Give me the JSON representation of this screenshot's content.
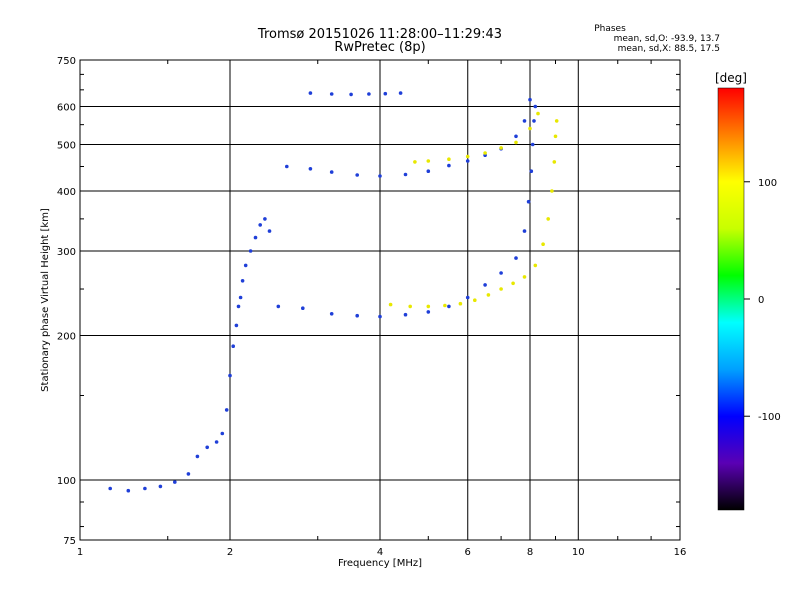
{
  "header": {
    "title_line1": "Tromsø 20151026 11:28:00–11:29:43",
    "title_line2": "RwPretec (8p)",
    "stats_title": "Phases",
    "stats_o": "mean, sd,O: -93.9, 13.7",
    "stats_x": "mean, sd,X: 88.5, 17.5"
  },
  "chart_data": {
    "type": "scatter",
    "title": "Tromsø 20151026 11:28:00–11:29:43",
    "subtitle": "RwPretec (8p)",
    "xlabel": "Frequency [MHz]",
    "ylabel": "Stationary phase Virtual Height [km]",
    "xscale": "log",
    "yscale": "log",
    "xlim": [
      1,
      16
    ],
    "ylim": [
      75,
      750
    ],
    "xticks": [
      1,
      2,
      4,
      6,
      8,
      10,
      16
    ],
    "yticks": [
      75,
      100,
      200,
      300,
      400,
      500,
      600,
      750
    ],
    "grid": true,
    "colorbar": {
      "label": "[deg]",
      "range": [
        -180,
        180
      ],
      "ticks": [
        -100,
        0,
        100
      ],
      "colors": [
        "#000000",
        "#5a00b4",
        "#0000ff",
        "#00a0ff",
        "#00ffff",
        "#00ff00",
        "#c8ff00",
        "#ffff00",
        "#ff8000",
        "#ff0000"
      ]
    },
    "series": [
      {
        "name": "O",
        "color": "#1f3fd8",
        "points": [
          [
            1.15,
            96
          ],
          [
            1.25,
            95
          ],
          [
            1.35,
            96
          ],
          [
            1.45,
            97
          ],
          [
            1.55,
            99
          ],
          [
            1.65,
            103
          ],
          [
            1.72,
            112
          ],
          [
            1.8,
            117
          ],
          [
            1.88,
            120
          ],
          [
            1.93,
            125
          ],
          [
            1.97,
            140
          ],
          [
            2.0,
            165
          ],
          [
            2.03,
            190
          ],
          [
            2.06,
            210
          ],
          [
            2.08,
            230
          ],
          [
            2.1,
            240
          ],
          [
            2.12,
            260
          ],
          [
            2.15,
            280
          ],
          [
            2.2,
            300
          ],
          [
            2.25,
            320
          ],
          [
            2.3,
            340
          ],
          [
            2.35,
            350
          ],
          [
            2.4,
            330
          ],
          [
            2.5,
            230
          ],
          [
            2.8,
            228
          ],
          [
            3.2,
            222
          ],
          [
            3.6,
            220
          ],
          [
            4.0,
            219
          ],
          [
            4.5,
            221
          ],
          [
            5.0,
            224
          ],
          [
            5.5,
            230
          ],
          [
            6.0,
            240
          ],
          [
            6.5,
            255
          ],
          [
            7.0,
            270
          ],
          [
            7.5,
            290
          ],
          [
            7.8,
            330
          ],
          [
            7.95,
            380
          ],
          [
            8.05,
            440
          ],
          [
            8.1,
            500
          ],
          [
            8.15,
            560
          ],
          [
            8.2,
            600
          ],
          [
            2.6,
            450
          ],
          [
            2.9,
            445
          ],
          [
            3.2,
            438
          ],
          [
            3.6,
            432
          ],
          [
            4.0,
            430
          ],
          [
            4.5,
            433
          ],
          [
            5.0,
            440
          ],
          [
            5.5,
            452
          ],
          [
            6.0,
            462
          ],
          [
            6.5,
            475
          ],
          [
            7.0,
            490
          ],
          [
            7.5,
            520
          ],
          [
            7.8,
            560
          ],
          [
            8.0,
            620
          ],
          [
            2.9,
            640
          ],
          [
            3.2,
            637
          ],
          [
            3.5,
            636
          ],
          [
            3.8,
            637
          ],
          [
            4.1,
            638
          ],
          [
            4.4,
            640
          ]
        ]
      },
      {
        "name": "X",
        "color": "#e8e800",
        "points": [
          [
            4.2,
            232
          ],
          [
            4.6,
            230
          ],
          [
            5.0,
            230
          ],
          [
            5.4,
            231
          ],
          [
            5.8,
            233
          ],
          [
            6.2,
            237
          ],
          [
            6.6,
            243
          ],
          [
            7.0,
            250
          ],
          [
            7.4,
            257
          ],
          [
            7.8,
            265
          ],
          [
            8.2,
            280
          ],
          [
            8.5,
            310
          ],
          [
            8.7,
            350
          ],
          [
            8.85,
            400
          ],
          [
            8.95,
            460
          ],
          [
            9.0,
            520
          ],
          [
            9.05,
            560
          ],
          [
            4.7,
            460
          ],
          [
            5.0,
            462
          ],
          [
            5.5,
            466
          ],
          [
            6.0,
            472
          ],
          [
            6.5,
            480
          ],
          [
            7.0,
            492
          ],
          [
            7.5,
            505
          ],
          [
            8.0,
            540
          ],
          [
            8.3,
            580
          ]
        ]
      }
    ]
  }
}
